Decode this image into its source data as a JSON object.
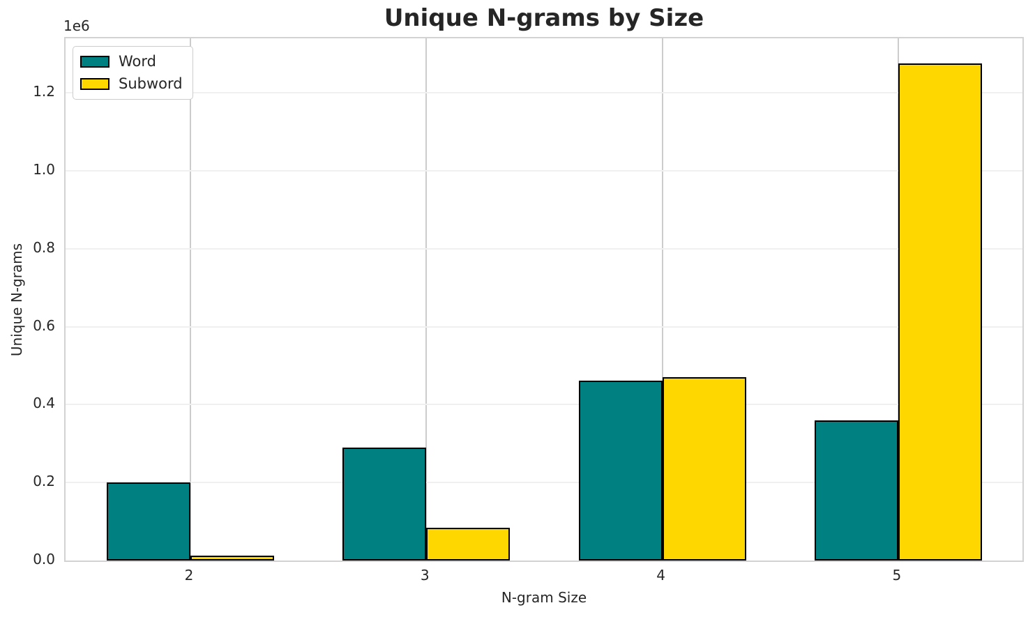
{
  "chart_data": {
    "type": "bar",
    "title": "Unique N-grams by Size",
    "xlabel": "N-gram Size",
    "ylabel": "Unique N-grams",
    "offset_text": "1e6",
    "categories": [
      "2",
      "3",
      "4",
      "5"
    ],
    "series": [
      {
        "name": "Word",
        "color": "#008080",
        "values": [
          200000,
          290000,
          462000,
          360000
        ]
      },
      {
        "name": "Subword",
        "color": "#FFD700",
        "values": [
          12000,
          84000,
          470000,
          1275000
        ]
      }
    ],
    "bar_edge_color": "#000000",
    "ylim": [
      0,
      1340000
    ],
    "yticks": [
      0,
      200000,
      400000,
      600000,
      800000,
      1000000,
      1200000
    ],
    "ytick_labels": [
      "0.0",
      "0.2",
      "0.4",
      "0.6",
      "0.8",
      "1.0",
      "1.2"
    ],
    "grid": true,
    "legend_position": "upper left"
  }
}
